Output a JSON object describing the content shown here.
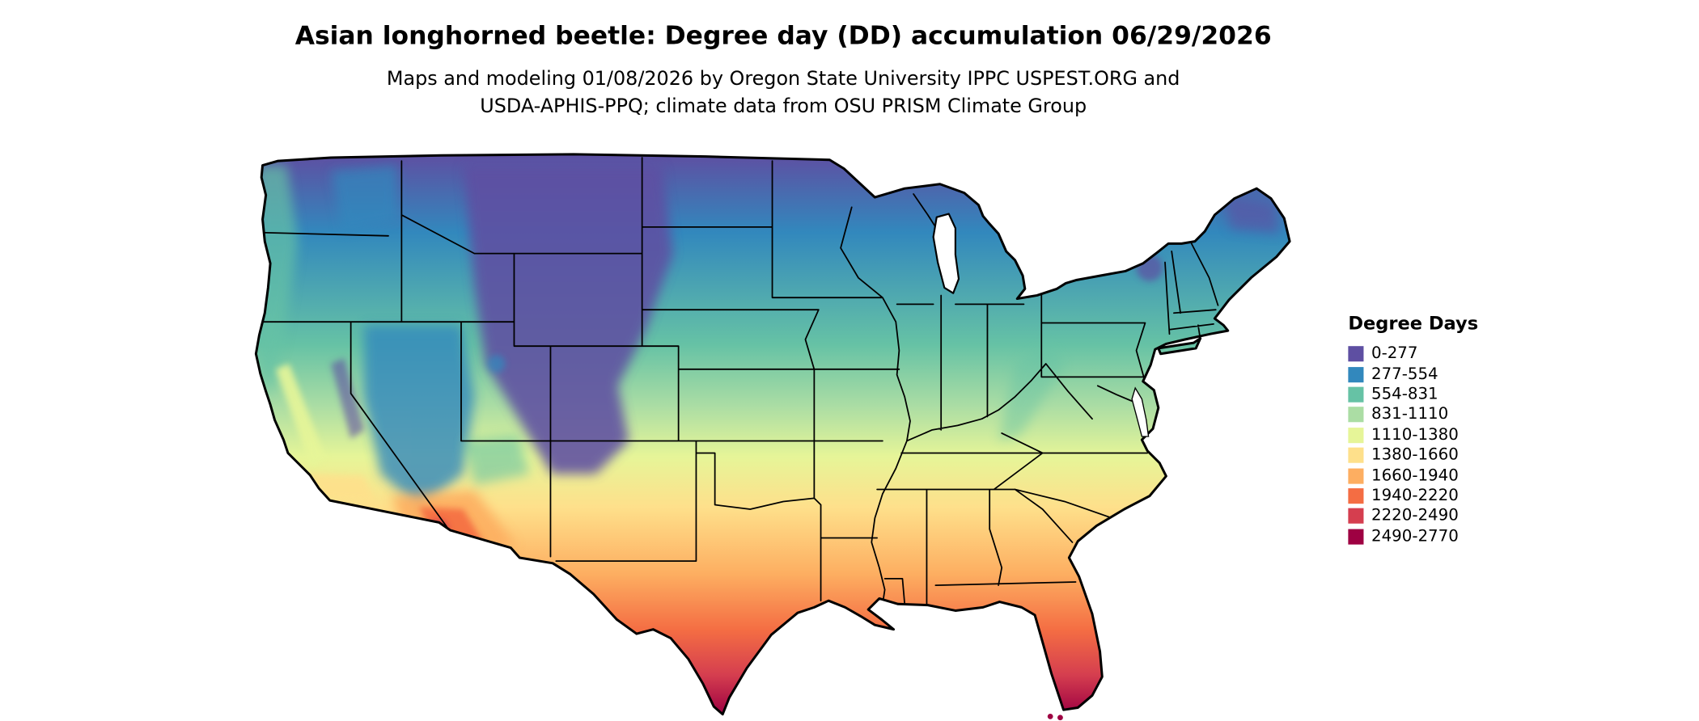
{
  "header": {
    "title": "Asian longhorned beetle: Degree day (DD) accumulation 06/29/2026",
    "subtitle_line1": "Maps and modeling 01/08/2026 by Oregon State University IPPC USPEST.ORG and",
    "subtitle_line2": "USDA-APHIS-PPQ; climate data from OSU PRISM Climate Group"
  },
  "map": {
    "region": "Contiguous United States",
    "variable": "Degree day (DD) accumulation",
    "background_color": "#ffffff",
    "boundary_color": "#000000"
  },
  "legend": {
    "title": "Degree Days",
    "items": [
      {
        "label": "0-277",
        "color": "#5e4fa2"
      },
      {
        "label": "277-554",
        "color": "#3288bd"
      },
      {
        "label": "554-831",
        "color": "#66c2a5"
      },
      {
        "label": "831-1110",
        "color": "#abdda4"
      },
      {
        "label": "1110-1380",
        "color": "#e6f598"
      },
      {
        "label": "1380-1660",
        "color": "#fee08b"
      },
      {
        "label": "1660-1940",
        "color": "#fdae61"
      },
      {
        "label": "1940-2220",
        "color": "#f46d43"
      },
      {
        "label": "2220-2490",
        "color": "#d53e4f"
      },
      {
        "label": "2490-2770",
        "color": "#9e0142"
      }
    ]
  }
}
